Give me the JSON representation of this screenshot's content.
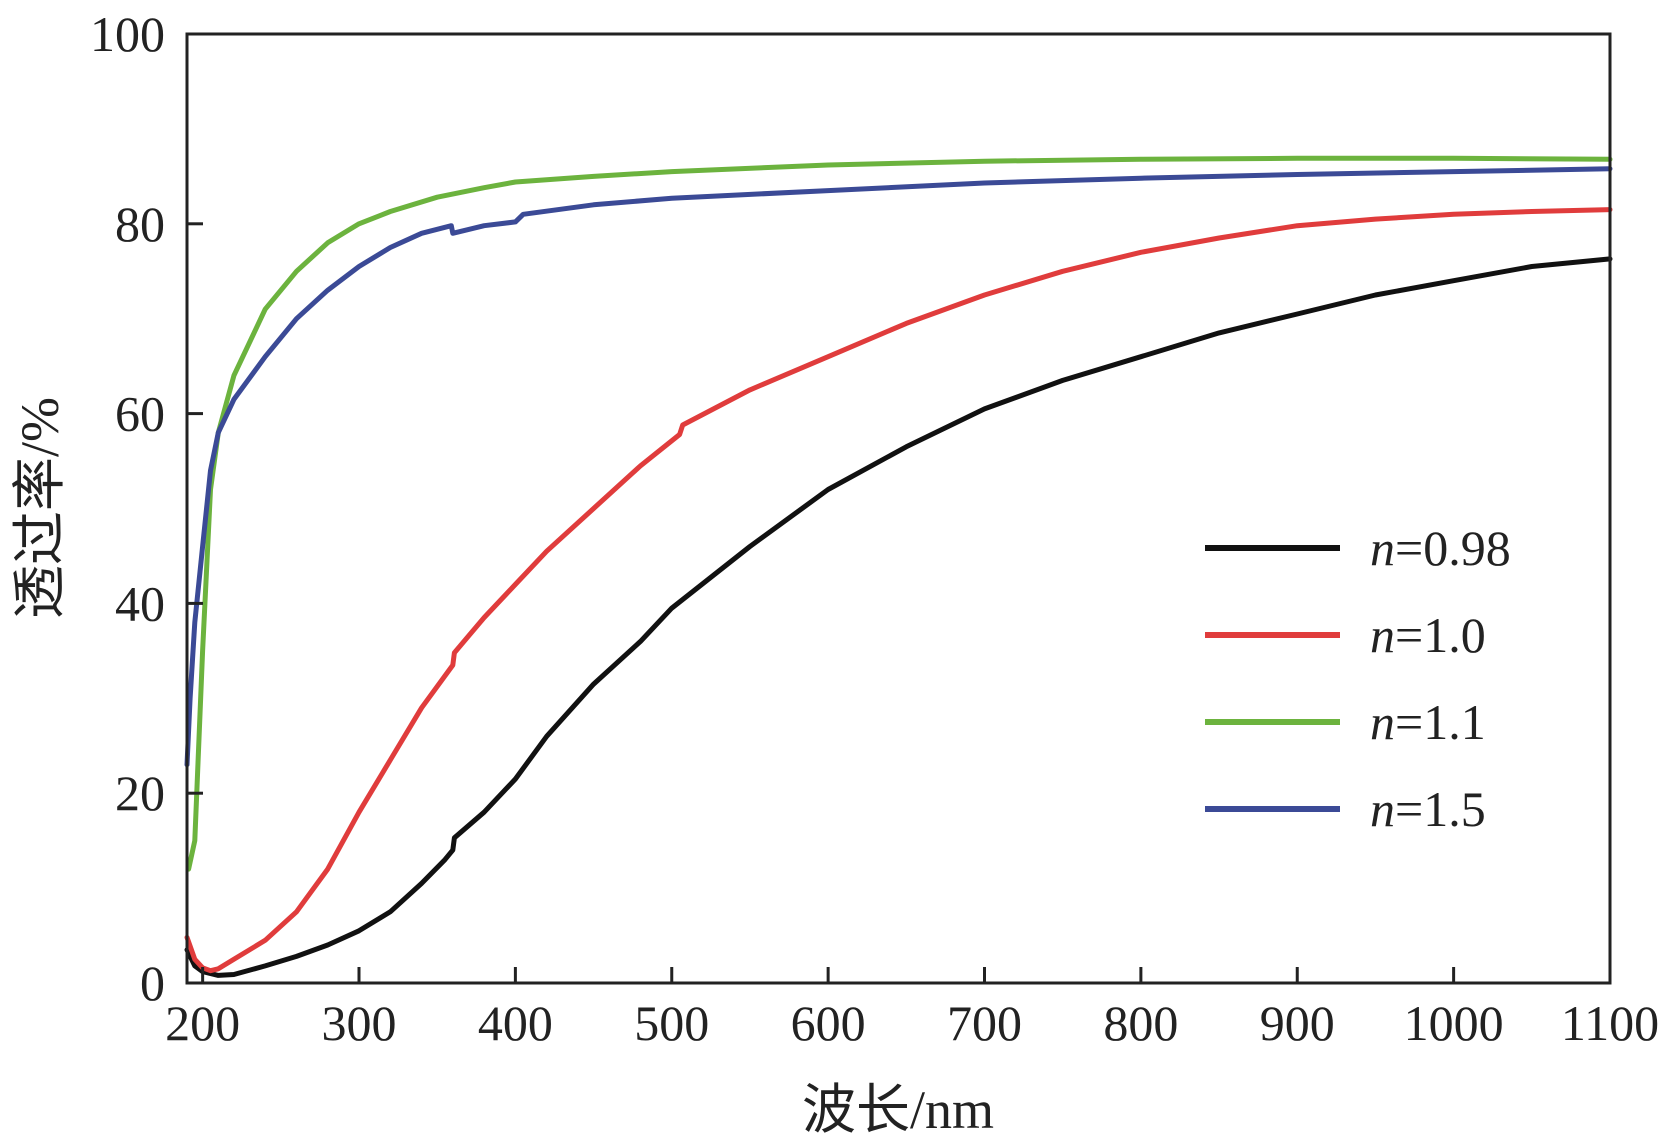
{
  "chart_data": {
    "type": "line",
    "xlabel": "波长/nm",
    "ylabel": "透过率/%",
    "xlim": [
      190,
      1100
    ],
    "ylim": [
      0,
      100
    ],
    "xticks": [
      200,
      300,
      400,
      500,
      600,
      700,
      800,
      900,
      1000,
      1100
    ],
    "yticks": [
      0,
      20,
      40,
      60,
      80,
      100
    ],
    "grid": false,
    "legend_position": "center-right",
    "series": [
      {
        "name": "n=0.98",
        "legend_var": "n",
        "legend_value": "=0.98",
        "color": "#111111",
        "points": [
          [
            190,
            3.5
          ],
          [
            195,
            1.8
          ],
          [
            200,
            1.2
          ],
          [
            210,
            0.8
          ],
          [
            220,
            0.9
          ],
          [
            240,
            1.8
          ],
          [
            260,
            2.8
          ],
          [
            280,
            4.0
          ],
          [
            300,
            5.5
          ],
          [
            320,
            7.5
          ],
          [
            340,
            10.5
          ],
          [
            355,
            13.0
          ],
          [
            360,
            14.0
          ],
          [
            361,
            15.3
          ],
          [
            380,
            18.0
          ],
          [
            400,
            21.5
          ],
          [
            420,
            26.0
          ],
          [
            450,
            31.5
          ],
          [
            480,
            36.0
          ],
          [
            500,
            39.5
          ],
          [
            550,
            46.0
          ],
          [
            600,
            52.0
          ],
          [
            650,
            56.5
          ],
          [
            700,
            60.5
          ],
          [
            750,
            63.5
          ],
          [
            800,
            66.0
          ],
          [
            850,
            68.5
          ],
          [
            900,
            70.5
          ],
          [
            950,
            72.5
          ],
          [
            1000,
            74.0
          ],
          [
            1050,
            75.5
          ],
          [
            1100,
            76.3
          ]
        ]
      },
      {
        "name": "n=1.0",
        "legend_var": "n",
        "legend_value": "=1.0",
        "color": "#e03c3c",
        "points": [
          [
            190,
            4.8
          ],
          [
            195,
            2.5
          ],
          [
            200,
            1.6
          ],
          [
            205,
            1.3
          ],
          [
            210,
            1.5
          ],
          [
            220,
            2.5
          ],
          [
            240,
            4.5
          ],
          [
            260,
            7.5
          ],
          [
            280,
            12.0
          ],
          [
            300,
            18.0
          ],
          [
            320,
            23.5
          ],
          [
            340,
            29.0
          ],
          [
            360,
            33.5
          ],
          [
            361,
            34.8
          ],
          [
            380,
            38.5
          ],
          [
            400,
            42.0
          ],
          [
            420,
            45.5
          ],
          [
            450,
            50.0
          ],
          [
            480,
            54.5
          ],
          [
            505,
            57.8
          ],
          [
            507,
            58.8
          ],
          [
            550,
            62.5
          ],
          [
            600,
            66.0
          ],
          [
            650,
            69.5
          ],
          [
            700,
            72.5
          ],
          [
            750,
            75.0
          ],
          [
            800,
            77.0
          ],
          [
            850,
            78.5
          ],
          [
            900,
            79.8
          ],
          [
            950,
            80.5
          ],
          [
            1000,
            81.0
          ],
          [
            1050,
            81.3
          ],
          [
            1100,
            81.5
          ]
        ]
      },
      {
        "name": "n=1.1",
        "legend_var": "n",
        "legend_value": "=1.1",
        "color": "#6cb33e",
        "points": [
          [
            191,
            12.0
          ],
          [
            195,
            15.0
          ],
          [
            200,
            35.0
          ],
          [
            205,
            52.0
          ],
          [
            210,
            58.0
          ],
          [
            220,
            64.0
          ],
          [
            240,
            71.0
          ],
          [
            260,
            75.0
          ],
          [
            280,
            78.0
          ],
          [
            300,
            80.0
          ],
          [
            320,
            81.3
          ],
          [
            350,
            82.8
          ],
          [
            380,
            83.8
          ],
          [
            400,
            84.4
          ],
          [
            450,
            85.0
          ],
          [
            500,
            85.5
          ],
          [
            600,
            86.2
          ],
          [
            700,
            86.6
          ],
          [
            800,
            86.8
          ],
          [
            900,
            86.9
          ],
          [
            1000,
            86.9
          ],
          [
            1100,
            86.8
          ]
        ]
      },
      {
        "name": "n=1.5",
        "legend_var": "n",
        "legend_value": "=1.5",
        "color": "#3b4a96",
        "points": [
          [
            190,
            23.0
          ],
          [
            192,
            30.0
          ],
          [
            195,
            38.0
          ],
          [
            200,
            46.0
          ],
          [
            205,
            54.0
          ],
          [
            210,
            58.0
          ],
          [
            220,
            61.5
          ],
          [
            240,
            66.0
          ],
          [
            260,
            70.0
          ],
          [
            280,
            73.0
          ],
          [
            300,
            75.5
          ],
          [
            320,
            77.5
          ],
          [
            340,
            79.0
          ],
          [
            359,
            79.8
          ],
          [
            360,
            79.0
          ],
          [
            380,
            79.8
          ],
          [
            400,
            80.2
          ],
          [
            405,
            81.0
          ],
          [
            450,
            82.0
          ],
          [
            500,
            82.7
          ],
          [
            600,
            83.5
          ],
          [
            700,
            84.3
          ],
          [
            800,
            84.8
          ],
          [
            900,
            85.2
          ],
          [
            1000,
            85.5
          ],
          [
            1100,
            85.8
          ]
        ]
      }
    ]
  }
}
